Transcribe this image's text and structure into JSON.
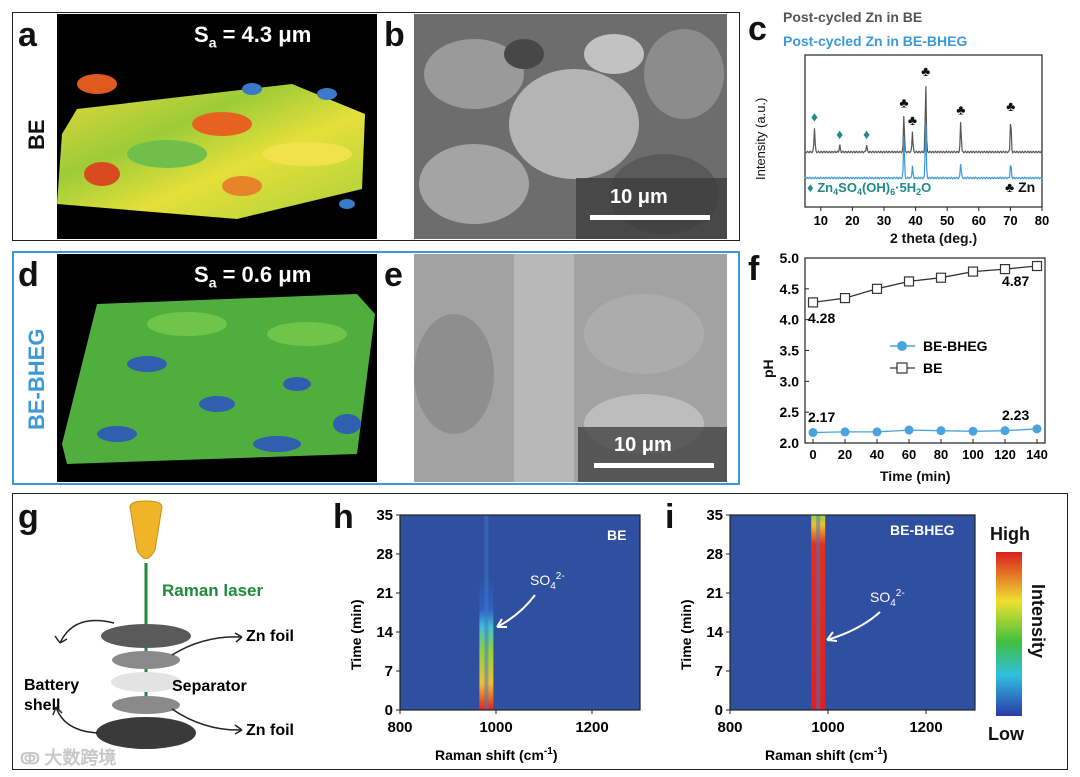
{
  "panels": {
    "a": {
      "letter": "a",
      "row_label": "BE",
      "sa_text": "S",
      "sa_sub": "a",
      "sa_value": " = 4.3 μm"
    },
    "b": {
      "letter": "b",
      "scale": "10 μm"
    },
    "c": {
      "letter": "c",
      "legend1": "Post-cycled Zn in BE",
      "legend2": "Post-cycled Zn in BE-BHEG",
      "marker1_text": "Zn",
      "zincsulfate": "Zn4SO4(OH)6·5H2O",
      "zn_label": "Zn",
      "ylabel": "Intensity (a.u.)",
      "xlabel": "2 theta (deg.)"
    },
    "d": {
      "letter": "d",
      "row_label": "BE-BHEG",
      "sa_text": "S",
      "sa_sub": "a",
      "sa_value": " = 0.6 μm"
    },
    "e": {
      "letter": "e",
      "scale": "10 μm"
    },
    "f": {
      "letter": "f",
      "ylabel": "pH",
      "xlabel": "Time (min)",
      "legend1": "BE-BHEG",
      "legend2": "BE",
      "ann_be_start": "4.28",
      "ann_be_end": "4.87",
      "ann_bheg_start": "2.17",
      "ann_bheg_end": "2.23"
    },
    "g": {
      "letter": "g",
      "laser": "Raman laser",
      "zn_foil_top": "Zn foil",
      "separator": "Separator",
      "zn_foil_bottom": "Zn foil",
      "shell1": "Battery",
      "shell2": "shell"
    },
    "h": {
      "letter": "h",
      "tag": "BE",
      "so4": "SO",
      "so4_sub": "4",
      "so4_sup": "2-",
      "ylabel": "Time (min)",
      "xlabel_main": "Raman shift (cm",
      "xlabel_sup": "-1",
      "xlabel_end": ")"
    },
    "i": {
      "letter": "i",
      "tag": "BE-BHEG",
      "so4": "SO",
      "so4_sub": "4",
      "so4_sup": "2-",
      "ylabel": "Time (min)",
      "xlabel_main": "Raman shift (cm",
      "xlabel_sup": "-1",
      "xlabel_end": ")"
    },
    "colorbar": {
      "high": "High",
      "low": "Low",
      "label": "Intensity"
    }
  },
  "watermark": "大数跨境",
  "chart_data": [
    {
      "type": "line",
      "title": "",
      "xlabel": "2 theta (deg.)",
      "ylabel": "Intensity (a.u.)",
      "xlim": [
        5,
        80
      ],
      "x_ticks": [
        10,
        20,
        30,
        40,
        50,
        60,
        70,
        80
      ],
      "series": [
        {
          "name": "Post-cycled Zn in BE",
          "color": "#555555",
          "peaks": [
            8.0,
            16.0,
            24.5,
            36.3,
            39.0,
            43.2,
            54.3,
            70.1
          ],
          "heights": [
            0.35,
            0.1,
            0.1,
            0.55,
            0.3,
            1.0,
            0.45,
            0.5
          ]
        },
        {
          "name": "Post-cycled Zn in BE-BHEG",
          "color": "#3a9ad9",
          "peaks": [
            36.3,
            39.0,
            43.2,
            54.3,
            70.1
          ],
          "heights": [
            0.7,
            0.2,
            0.9,
            0.25,
            0.25
          ]
        }
      ],
      "markers": {
        "Zn4SO4(OH)6·5H2O": [
          8.0,
          16.0,
          24.5
        ],
        "Zn": [
          36.3,
          39.0,
          43.2,
          54.3,
          70.1
        ]
      }
    },
    {
      "type": "line",
      "title": "",
      "xlabel": "Time (min)",
      "ylabel": "pH",
      "xlim": [
        -5,
        145
      ],
      "ylim": [
        2.0,
        5.0
      ],
      "x_ticks": [
        0,
        20,
        40,
        60,
        80,
        100,
        120,
        140
      ],
      "y_ticks": [
        2.0,
        2.5,
        3.0,
        3.5,
        4.0,
        4.5,
        5.0
      ],
      "x": [
        0,
        20,
        40,
        60,
        80,
        100,
        120,
        140
      ],
      "series": [
        {
          "name": "BE-BHEG",
          "color": "#4aa3df",
          "marker": "circle",
          "values": [
            2.17,
            2.18,
            2.18,
            2.21,
            2.2,
            2.19,
            2.2,
            2.23
          ]
        },
        {
          "name": "BE",
          "color": "#333333",
          "marker": "square-open",
          "values": [
            4.28,
            4.35,
            4.5,
            4.62,
            4.68,
            4.78,
            4.82,
            4.87
          ]
        }
      ]
    },
    {
      "type": "heatmap",
      "title": "",
      "tag": "BE",
      "xlabel": "Raman shift (cm-1)",
      "ylabel": "Time (min)",
      "xlim": [
        800,
        1300
      ],
      "ylim": [
        0,
        35
      ],
      "x_ticks": [
        800,
        1000,
        1200
      ],
      "y_ticks": [
        0,
        7,
        14,
        21,
        28,
        35
      ],
      "peak_center": 980,
      "peak_fades_at_min": 24
    },
    {
      "type": "heatmap",
      "title": "",
      "tag": "BE-BHEG",
      "xlabel": "Raman shift (cm-1)",
      "ylabel": "Time (min)",
      "xlim": [
        800,
        1300
      ],
      "ylim": [
        0,
        35
      ],
      "x_ticks": [
        800,
        1000,
        1200
      ],
      "y_ticks": [
        0,
        7,
        14,
        21,
        28,
        35
      ],
      "peak_center": 980,
      "peak_fades_at_min": 35
    }
  ]
}
